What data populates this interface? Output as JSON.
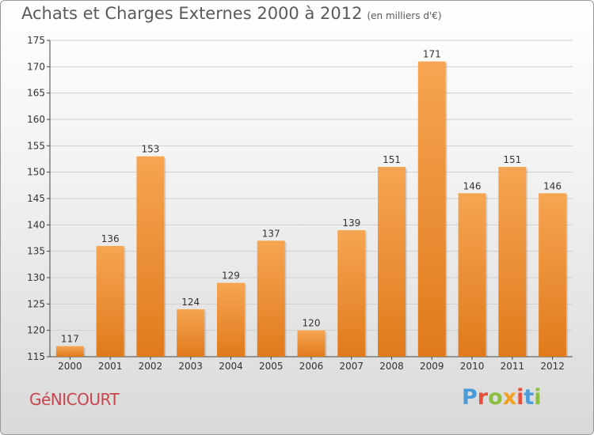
{
  "header": {
    "title": "Achats et Charges Externes 2000 à 2012",
    "subtitle": "(en milliers d'€)"
  },
  "footer": {
    "commune": "GéNICOURT",
    "logo": "Proxiti"
  },
  "colors": {
    "bar_top": "#f6a552",
    "bar_bottom": "#e07a1c",
    "grid": "#d0d0d0",
    "axis": "#444444",
    "text": "#333333",
    "footer_name": "#c8454e",
    "logo_letters": [
      "#4a9bd8",
      "#e8503a",
      "#8cbf3f",
      "#f1a020",
      "#e8503a",
      "#4a9bd8",
      "#8cbf3f"
    ]
  },
  "chart_data": {
    "type": "bar",
    "title": "Achats et Charges Externes 2000 à 2012",
    "subtitle": "(en milliers d'€)",
    "xlabel": "",
    "ylabel": "",
    "categories": [
      "2000",
      "2001",
      "2002",
      "2003",
      "2004",
      "2005",
      "2006",
      "2007",
      "2008",
      "2009",
      "2010",
      "2011",
      "2012"
    ],
    "values": [
      117,
      136,
      153,
      124,
      129,
      137,
      120,
      139,
      151,
      171,
      146,
      151,
      146
    ],
    "ylim": [
      115,
      175
    ],
    "yticks": [
      115,
      120,
      125,
      130,
      135,
      140,
      145,
      150,
      155,
      160,
      165,
      170,
      175
    ],
    "grid": true,
    "legend": "none"
  }
}
